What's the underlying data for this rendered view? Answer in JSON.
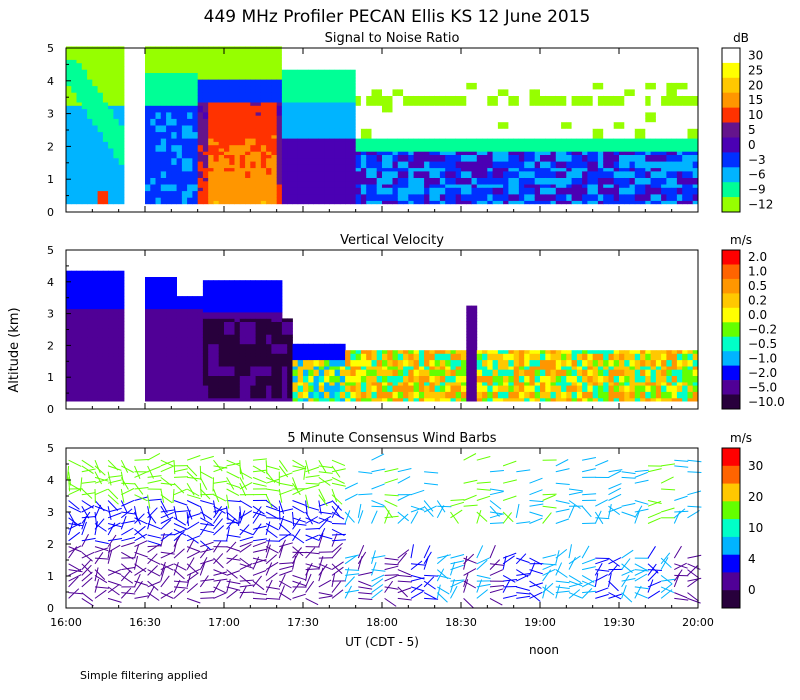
{
  "figure": {
    "title": "449 MHz Profiler PECAN Ellis KS 12 June 2015",
    "ylabel": "Altitude (km)",
    "xlabel": "UT  (CDT - 5)",
    "x_ticks": [
      "16:00",
      "16:30",
      "17:00",
      "17:30",
      "18:00",
      "18:30",
      "19:00",
      "19:30",
      "20:00"
    ],
    "x_annotation": "noon",
    "y_ticks": [
      "0",
      "1",
      "2",
      "3",
      "4",
      "5"
    ],
    "footnote": "Simple filtering applied"
  },
  "chart_data": [
    {
      "type": "heatmap",
      "title": "Signal to Noise Ratio",
      "unit": "dB",
      "x_range": [
        "16:00",
        "20:00"
      ],
      "ylim": [
        0,
        5
      ],
      "data_gap": [
        "16:22",
        "16:30"
      ],
      "colorbar": {
        "labels": [
          "30",
          "25",
          "20",
          "15",
          "10",
          "5",
          "0",
          "−3",
          "−6",
          "−9",
          "−12"
        ],
        "colors": [
          "#ffffff",
          "#ffff00",
          "#ffc800",
          "#ff9600",
          "#ff3200",
          "#64148c",
          "#4b00b4",
          "#0030ff",
          "#00b4ff",
          "#00ff96",
          "#96ff00"
        ]
      },
      "regions": [
        {
          "name": "strong echo",
          "x": [
            "16:50",
            "17:20"
          ],
          "y": [
            0.3,
            3.3
          ],
          "value_db": 15
        },
        {
          "name": "weak returns aloft",
          "x": [
            "17:45",
            "20:00"
          ],
          "y": [
            2.0,
            4.0
          ],
          "value_db": 30
        }
      ]
    },
    {
      "type": "heatmap",
      "title": "Vertical Velocity",
      "unit": "m/s",
      "x_range": [
        "16:00",
        "20:00"
      ],
      "ylim": [
        0,
        5
      ],
      "data_gap": [
        "16:22",
        "16:30"
      ],
      "colorbar": {
        "labels": [
          "2.0",
          "1.0",
          "0.5",
          "0.2",
          "0.0",
          "−0.2",
          "−0.5",
          "−1.0",
          "−2.0",
          "−5.0",
          "−10.0"
        ],
        "colors": [
          "#ff0000",
          "#ff6400",
          "#ff9600",
          "#ffc800",
          "#ffff00",
          "#64ff00",
          "#00ffc8",
          "#00b4ff",
          "#0000ff",
          "#500096",
          "#28003c"
        ]
      },
      "regions": [
        {
          "name": "strong downdraft",
          "x": [
            "16:55",
            "17:20"
          ],
          "y": [
            0.3,
            2.8
          ],
          "value_ms": -10.0
        },
        {
          "name": "weak motion",
          "x": [
            "18:15",
            "20:00"
          ],
          "y": [
            0.3,
            1.8
          ],
          "value_ms": 0.2
        }
      ]
    },
    {
      "type": "scatter",
      "title": "5 Minute Consensus Wind Barbs",
      "unit": "m/s",
      "x_range": [
        "16:00",
        "20:00"
      ],
      "ylim": [
        0,
        5
      ],
      "colorbar": {
        "labels": [
          "30",
          "20",
          "10",
          "4",
          "0"
        ],
        "colors": [
          "#ff0000",
          "#ff6400",
          "#ffc800",
          "#64ff00",
          "#00ffc8",
          "#00b4ff",
          "#0000ff",
          "#500096",
          "#28003c"
        ]
      },
      "layers": [
        {
          "name": "upper winds",
          "y": [
            3.5,
            4.5
          ],
          "speed_ms": 10
        },
        {
          "name": "mid winds",
          "y": [
            2.0,
            3.3
          ],
          "speed_ms": 4
        },
        {
          "name": "low-level winds",
          "y": [
            0.3,
            1.6
          ],
          "speed_ms": 2
        }
      ]
    }
  ]
}
